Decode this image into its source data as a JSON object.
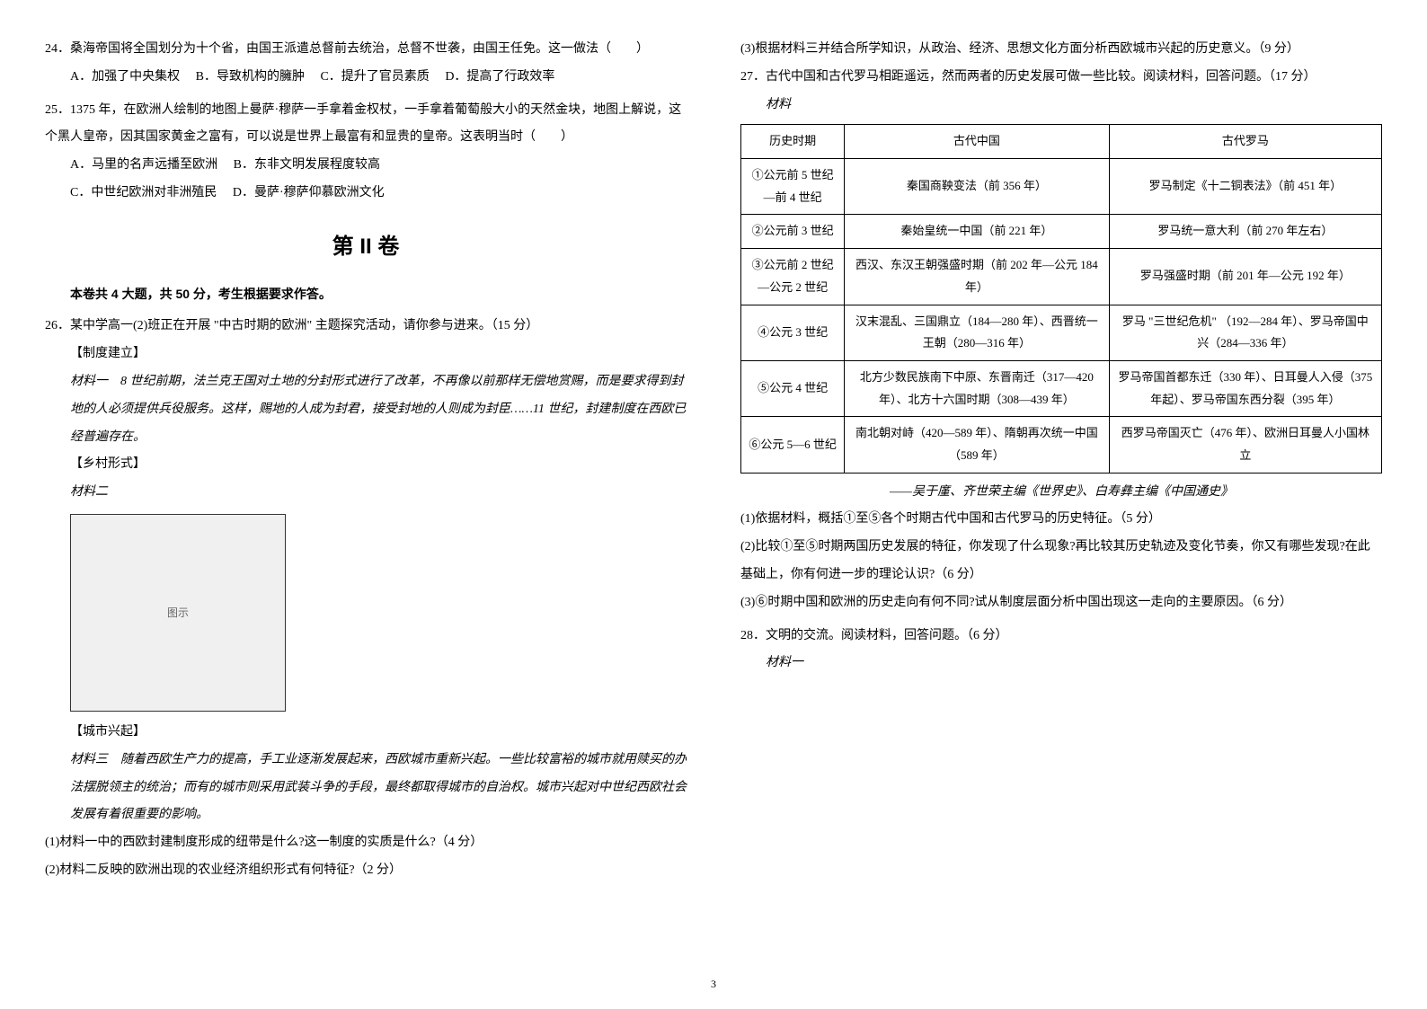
{
  "left": {
    "q24": {
      "num": "24．",
      "text": "桑海帝国将全国划分为十个省，由国王派遣总督前去统治，总督不世袭，由国王任免。这一做法（　　）",
      "optA": "A．加强了中央集权",
      "optB": "B．导致机构的臃肿",
      "optC": "C．提升了官员素质",
      "optD": "D．提高了行政效率"
    },
    "q25": {
      "num": "25．",
      "text": "1375 年，在欧洲人绘制的地图上曼萨·穆萨一手拿着金权杖，一手拿着葡萄般大小的天然金块，地图上解说，这个黑人皇帝，因其国家黄金之富有，可以说是世界上最富有和显贵的皇帝。这表明当时（　　）",
      "optA": "A．马里的名声远播至欧洲",
      "optB": "B．东非文明发展程度较高",
      "optC": "C．中世纪欧洲对非洲殖民",
      "optD": "D．曼萨·穆萨仰慕欧洲文化"
    },
    "sectionTitle": "第 II 卷",
    "sectionNote": "本卷共 4 大题，共 50 分，考生根据要求作答。",
    "q26": {
      "num": "26．",
      "intro": "某中学高一(2)班正在开展 \"中古时期的欧洲\" 主题探究活动，请你参与进来。（15 分）",
      "sub1": "【制度建立】",
      "mat1label": "材料一",
      "mat1": "　8 世纪前期，法兰克王国对土地的分封形式进行了改革，不再像以前那样无偿地赏赐，而是要求得到封地的人必须提供兵役服务。这样，赐地的人成为封君，接受封地的人则成为封臣……11 世纪，封建制度在西欧已经普遍存在。",
      "sub2": "【乡村形式】",
      "mat2label": "材料二",
      "sub3": "【城市兴起】",
      "mat3label": "材料三",
      "mat3": "　随着西欧生产力的提高，手工业逐渐发展起来，西欧城市重新兴起。一些比较富裕的城市就用赎买的办法摆脱领主的统治；而有的城市则采用武装斗争的手段，最终都取得城市的自治权。城市兴起对中世纪西欧社会发展有着很重要的影响。",
      "q1": "(1)材料一中的西欧封建制度形成的纽带是什么?这一制度的实质是什么?（4 分）",
      "q2": "(2)材料二反映的欧洲出现的农业经济组织形式有何特征?（2 分）"
    }
  },
  "right": {
    "q26_3": "(3)根据材料三并结合所学知识，从政治、经济、思想文化方面分析西欧城市兴起的历史意义。（9 分）",
    "q27": {
      "num": "27．",
      "intro": "古代中国和古代罗马相距遥远，然而两者的历史发展可做一些比较。阅读材料，回答问题。（17 分）",
      "matlabel": "材料",
      "source": "——吴于廑、齐世荣主编《世界史》、白寿彝主编《中国通史》",
      "q1": "(1)依据材料，概括①至⑤各个时期古代中国和古代罗马的历史特征。（5 分）",
      "q2": "(2)比较①至⑤时期两国历史发展的特征，你发现了什么现象?再比较其历史轨迹及变化节奏，你又有哪些发现?在此基础上，你有何进一步的理论认识?（6 分）",
      "q3": "(3)⑥时期中国和欧洲的历史走向有何不同?试从制度层面分析中国出现这一走向的主要原因。（6 分）"
    },
    "table": {
      "headers": [
        "历史时期",
        "古代中国",
        "古代罗马"
      ],
      "rows": [
        {
          "c1": "①公元前 5 世纪—前 4 世纪",
          "c2": "秦国商鞅变法（前 356 年）",
          "c3": "罗马制定《十二铜表法》（前 451 年）"
        },
        {
          "c1": "②公元前 3 世纪",
          "c2": "秦始皇统一中国（前 221 年）",
          "c3": "罗马统一意大利（前 270 年左右）"
        },
        {
          "c1": "③公元前 2 世纪—公元 2 世纪",
          "c2": "西汉、东汉王朝强盛时期（前 202 年—公元 184 年）",
          "c3": "罗马强盛时期（前 201 年—公元 192 年）"
        },
        {
          "c1": "④公元 3 世纪",
          "c2": "汉末混乱、三国鼎立（184—280 年）、西晋统一王朝（280—316 年）",
          "c3": "罗马 \"三世纪危机\" （192—284 年）、罗马帝国中兴（284—336 年）"
        },
        {
          "c1": "⑤公元 4 世纪",
          "c2": "北方少数民族南下中原、东晋南迁（317—420 年）、北方十六国时期（308—439 年）",
          "c3": "罗马帝国首都东迁（330 年）、日耳曼人入侵（375 年起）、罗马帝国东西分裂（395 年）"
        },
        {
          "c1": "⑥公元 5—6 世纪",
          "c2": "南北朝对峙（420—589 年）、隋朝再次统一中国（589 年）",
          "c3": "西罗马帝国灭亡（476 年）、欧洲日耳曼人小国林立"
        }
      ]
    },
    "q28": {
      "num": "28．",
      "intro": "文明的交流。阅读材料，回答问题。（6 分）",
      "matlabel": "材料一"
    }
  },
  "pageNum": "3"
}
